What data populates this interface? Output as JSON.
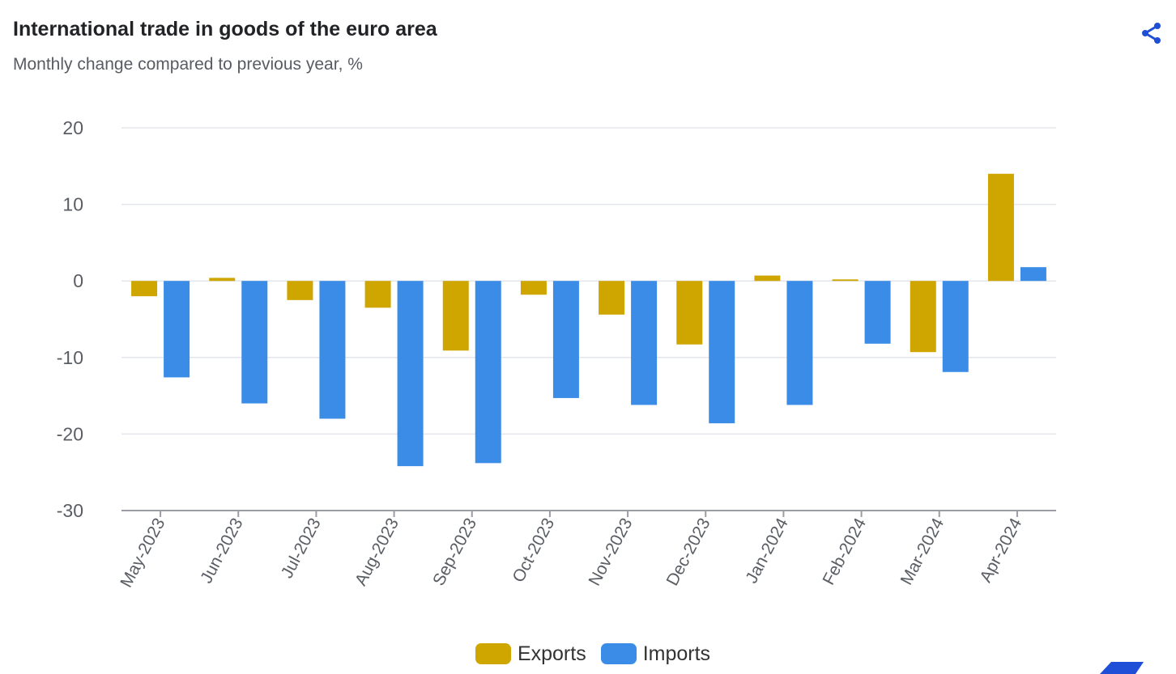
{
  "title": "International trade in goods of the euro area",
  "subtitle": "Monthly change compared to previous year, %",
  "share_icon": "share-icon",
  "colors": {
    "exports": "#cfa600",
    "imports": "#3a8ce6",
    "grid": "#e3e6ec",
    "axis": "#9a9da3",
    "tick_text": "#5a5e64",
    "accent": "#1e4fd6"
  },
  "chart_data": {
    "type": "bar",
    "title": "International trade in goods of the euro area",
    "subtitle": "Monthly change compared to previous year, %",
    "xlabel": "",
    "ylabel": "",
    "ylim": [
      -30,
      20
    ],
    "yticks": [
      20,
      10,
      0,
      -10,
      -20,
      -30
    ],
    "grid": true,
    "legend_position": "bottom-center",
    "categories": [
      "May-2023",
      "Jun-2023",
      "Jul-2023",
      "Aug-2023",
      "Sep-2023",
      "Oct-2023",
      "Nov-2023",
      "Dec-2023",
      "Jan-2024",
      "Feb-2024",
      "Mar-2024",
      "Apr-2024"
    ],
    "series": [
      {
        "name": "Exports",
        "values": [
          -2.0,
          0.4,
          -2.5,
          -3.5,
          -9.1,
          -1.8,
          -4.4,
          -8.3,
          0.7,
          0.2,
          -9.3,
          14.0
        ]
      },
      {
        "name": "Imports",
        "values": [
          -12.6,
          -16.0,
          -18.0,
          -24.2,
          -23.8,
          -15.3,
          -16.2,
          -18.6,
          -16.2,
          -8.2,
          -11.9,
          1.8
        ]
      }
    ]
  },
  "legend": [
    {
      "label": "Exports"
    },
    {
      "label": "Imports"
    }
  ]
}
